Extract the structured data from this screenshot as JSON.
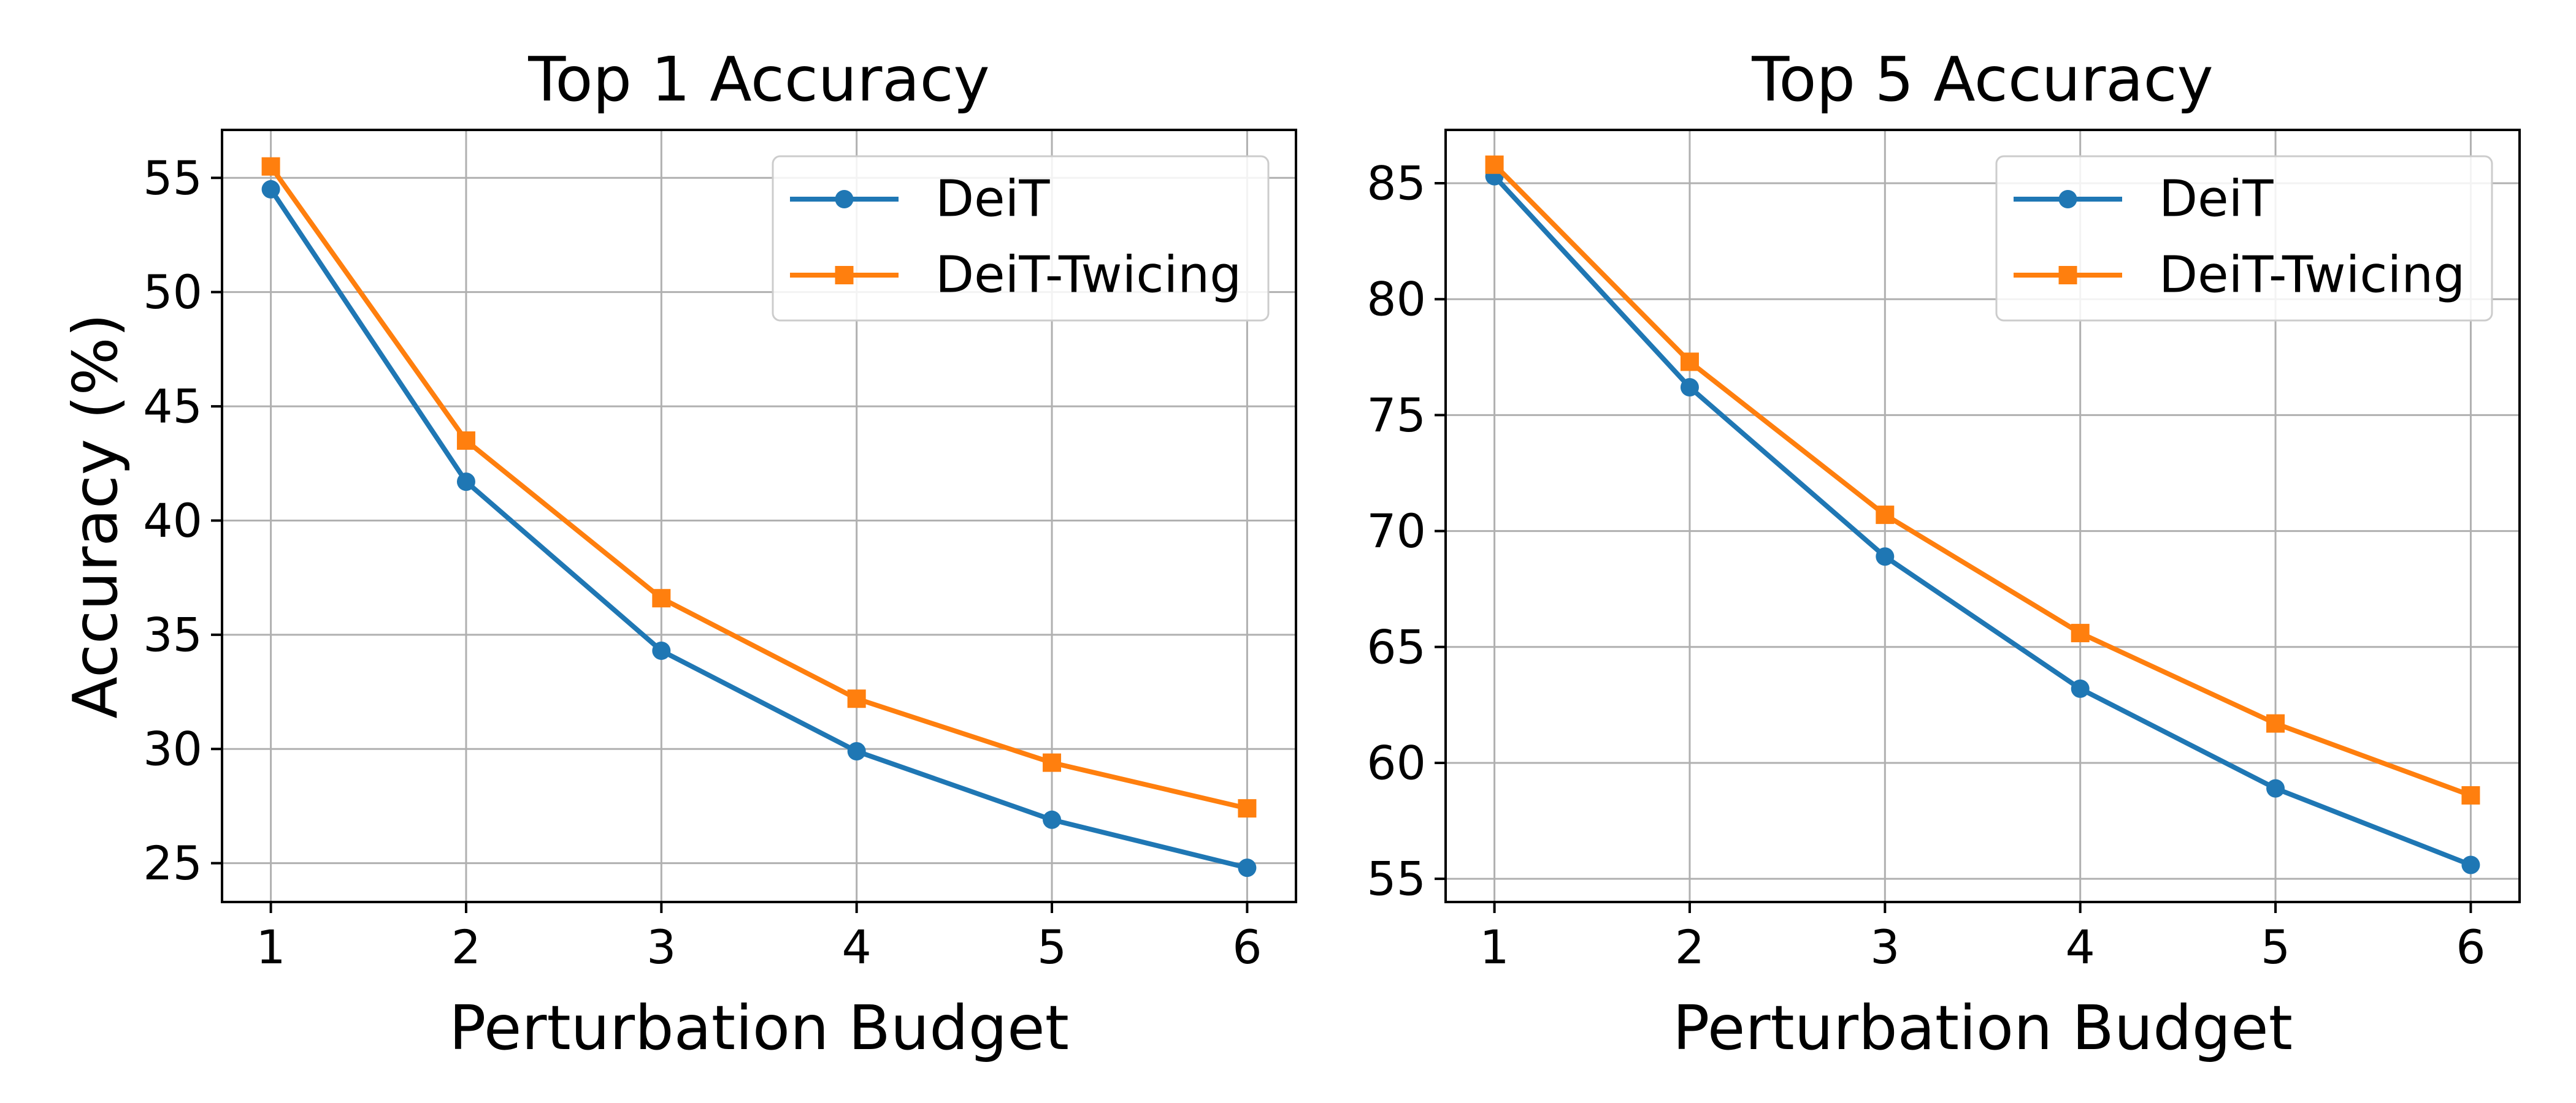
{
  "chart_data": [
    {
      "type": "line",
      "title": "Top 1 Accuracy",
      "xlabel": "Perturbation Budget",
      "ylabel": "Accuracy (%)",
      "x": [
        1,
        2,
        3,
        4,
        5,
        6
      ],
      "xlim": [
        0.75,
        6.25
      ],
      "ylim": [
        23.3,
        57.1
      ],
      "xticks": [
        1,
        2,
        3,
        4,
        5,
        6
      ],
      "yticks": [
        25,
        30,
        35,
        40,
        45,
        50,
        55
      ],
      "grid": true,
      "legend_position": "top-right",
      "series": [
        {
          "name": "DeiT",
          "marker": "circle",
          "color": "#1f77b4",
          "values": [
            54.5,
            41.7,
            34.3,
            29.9,
            26.9,
            24.8
          ]
        },
        {
          "name": "DeiT-Twicing",
          "marker": "square",
          "color": "#ff7f0e",
          "values": [
            55.5,
            43.5,
            36.6,
            32.2,
            29.4,
            27.4
          ]
        }
      ]
    },
    {
      "type": "line",
      "title": "Top 5 Accuracy",
      "xlabel": "Perturbation Budget",
      "ylabel": "",
      "x": [
        1,
        2,
        3,
        4,
        5,
        6
      ],
      "xlim": [
        0.75,
        6.25
      ],
      "ylim": [
        54.0,
        87.3
      ],
      "xticks": [
        1,
        2,
        3,
        4,
        5,
        6
      ],
      "yticks": [
        55,
        60,
        65,
        70,
        75,
        80,
        85
      ],
      "grid": true,
      "legend_position": "top-right",
      "series": [
        {
          "name": "DeiT",
          "marker": "circle",
          "color": "#1f77b4",
          "values": [
            85.3,
            76.2,
            68.9,
            63.2,
            58.9,
            55.6
          ]
        },
        {
          "name": "DeiT-Twicing",
          "marker": "square",
          "color": "#ff7f0e",
          "values": [
            85.8,
            77.3,
            70.7,
            65.6,
            61.7,
            58.6
          ]
        }
      ]
    }
  ]
}
